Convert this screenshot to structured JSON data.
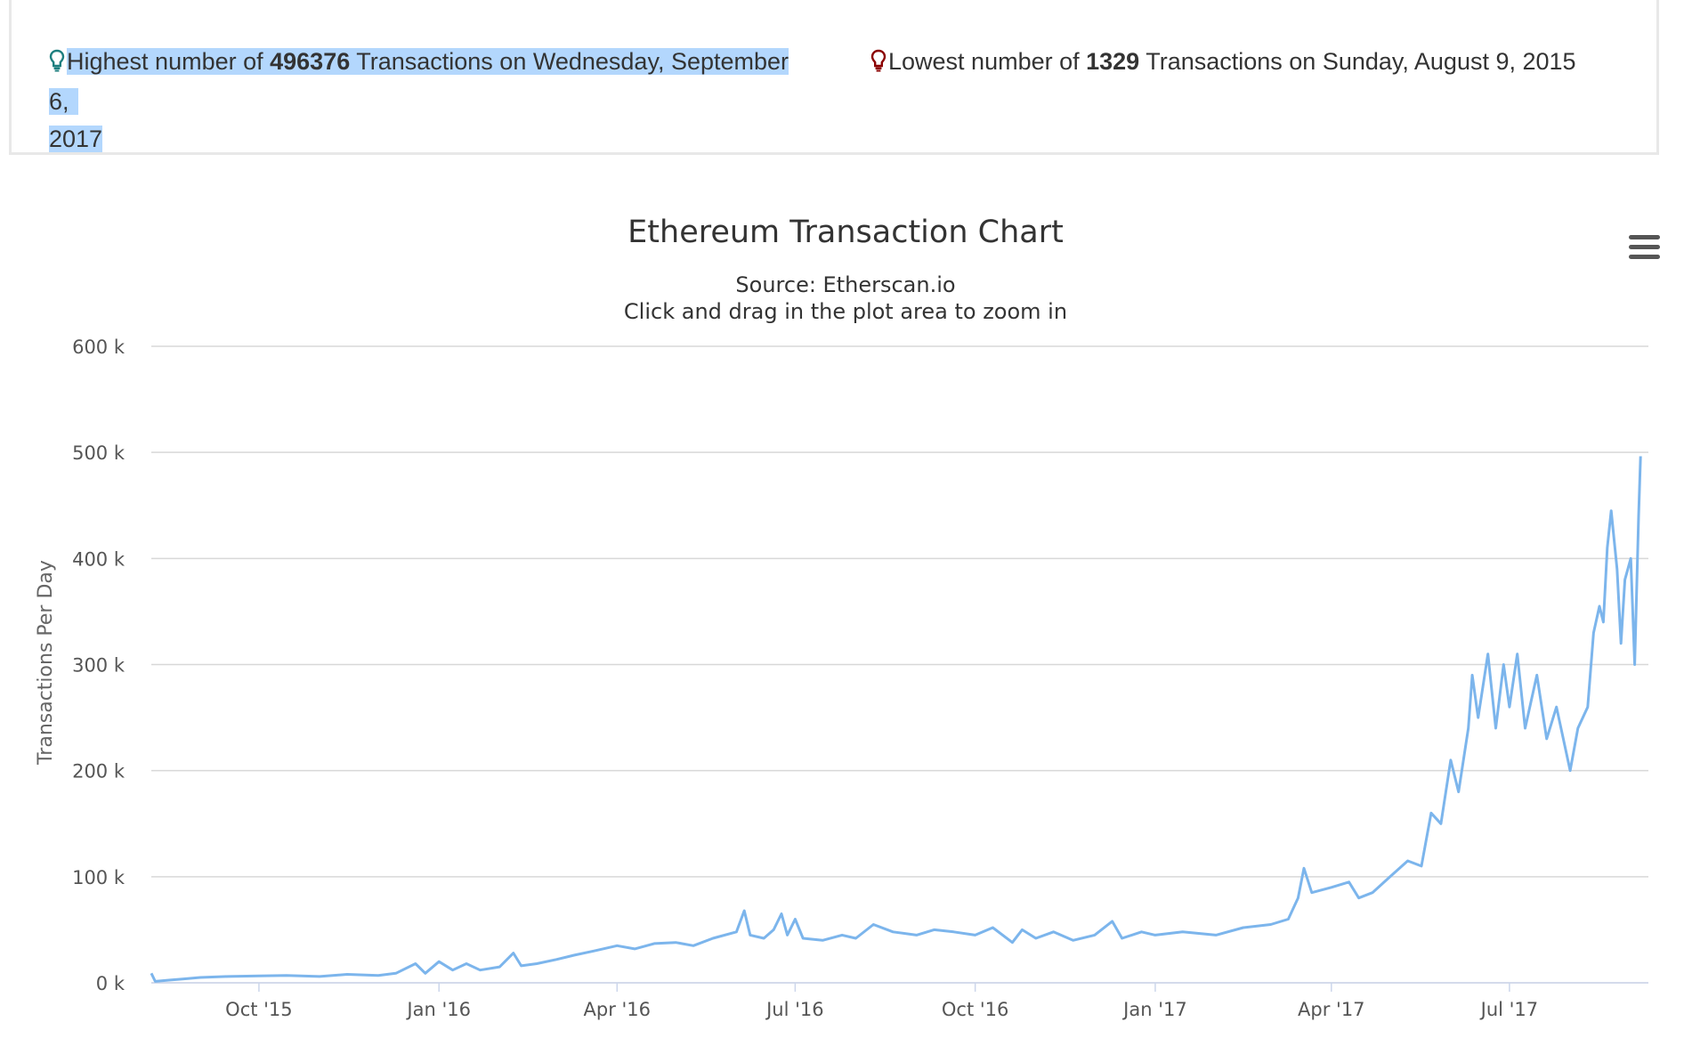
{
  "stats": {
    "highest": {
      "prefix": "Highest number of ",
      "value": "496376",
      "middle": " Transactions on ",
      "date_part1": "Wednesday, September 6,",
      "date_part2": "2017",
      "icon": "lightbulb-icon",
      "icon_color": "#1e7f7f",
      "selection_color": "#b3d7fd"
    },
    "lowest": {
      "prefix": "Lowest number of ",
      "value": "1329",
      "middle": " Transactions on ",
      "date": "Sunday, August 9, 2015",
      "icon": "lightbulb-icon",
      "icon_color": "#8b0000"
    }
  },
  "menu_icon": "hamburger-menu-icon",
  "chart_data": {
    "type": "line",
    "title": "Ethereum Transaction Chart",
    "subtitle_line1": "Source: Etherscan.io",
    "subtitle_line2": "Click and drag in the plot area to zoom in",
    "ylabel": "Transactions Per Day",
    "xlabel": "",
    "ylim": [
      0,
      600000
    ],
    "xlim": [
      "2015-08-07",
      "2017-09-10"
    ],
    "grid": true,
    "line_color": "#7cb5ec",
    "y_ticks": [
      {
        "value": 0,
        "label": "0 k"
      },
      {
        "value": 100000,
        "label": "100 k"
      },
      {
        "value": 200000,
        "label": "200 k"
      },
      {
        "value": 300000,
        "label": "300 k"
      },
      {
        "value": 400000,
        "label": "400 k"
      },
      {
        "value": 500000,
        "label": "500 k"
      },
      {
        "value": 600000,
        "label": "600 k"
      }
    ],
    "x_ticks": [
      {
        "date": "2015-10-01",
        "label": "Oct '15"
      },
      {
        "date": "2016-01-01",
        "label": "Jan '16"
      },
      {
        "date": "2016-04-01",
        "label": "Apr '16"
      },
      {
        "date": "2016-07-01",
        "label": "Jul '16"
      },
      {
        "date": "2016-10-01",
        "label": "Oct '16"
      },
      {
        "date": "2017-01-01",
        "label": "Jan '17"
      },
      {
        "date": "2017-04-01",
        "label": "Apr '17"
      },
      {
        "date": "2017-07-01",
        "label": "Jul '17"
      }
    ],
    "series": [
      {
        "values": [
          [
            "2015-08-07",
            9000
          ],
          [
            "2015-08-09",
            1329
          ],
          [
            "2015-08-16",
            2500
          ],
          [
            "2015-08-23",
            3500
          ],
          [
            "2015-09-01",
            5000
          ],
          [
            "2015-09-15",
            6000
          ],
          [
            "2015-10-01",
            6500
          ],
          [
            "2015-10-15",
            7000
          ],
          [
            "2015-11-01",
            6000
          ],
          [
            "2015-11-15",
            8000
          ],
          [
            "2015-12-01",
            7000
          ],
          [
            "2015-12-10",
            9000
          ],
          [
            "2015-12-20",
            18000
          ],
          [
            "2015-12-25",
            9000
          ],
          [
            "2016-01-01",
            20000
          ],
          [
            "2016-01-08",
            12000
          ],
          [
            "2016-01-15",
            18000
          ],
          [
            "2016-01-22",
            12000
          ],
          [
            "2016-02-01",
            15000
          ],
          [
            "2016-02-08",
            28000
          ],
          [
            "2016-02-12",
            16000
          ],
          [
            "2016-02-20",
            18000
          ],
          [
            "2016-03-01",
            22000
          ],
          [
            "2016-03-10",
            26000
          ],
          [
            "2016-03-20",
            30000
          ],
          [
            "2016-04-01",
            35000
          ],
          [
            "2016-04-10",
            32000
          ],
          [
            "2016-04-20",
            37000
          ],
          [
            "2016-05-01",
            38000
          ],
          [
            "2016-05-10",
            35000
          ],
          [
            "2016-05-20",
            42000
          ],
          [
            "2016-06-01",
            48000
          ],
          [
            "2016-06-05",
            68000
          ],
          [
            "2016-06-08",
            45000
          ],
          [
            "2016-06-15",
            42000
          ],
          [
            "2016-06-20",
            50000
          ],
          [
            "2016-06-24",
            65000
          ],
          [
            "2016-06-27",
            45000
          ],
          [
            "2016-07-01",
            60000
          ],
          [
            "2016-07-05",
            42000
          ],
          [
            "2016-07-15",
            40000
          ],
          [
            "2016-07-25",
            45000
          ],
          [
            "2016-08-01",
            42000
          ],
          [
            "2016-08-10",
            55000
          ],
          [
            "2016-08-20",
            48000
          ],
          [
            "2016-09-01",
            45000
          ],
          [
            "2016-09-10",
            50000
          ],
          [
            "2016-09-20",
            48000
          ],
          [
            "2016-10-01",
            45000
          ],
          [
            "2016-10-10",
            52000
          ],
          [
            "2016-10-20",
            38000
          ],
          [
            "2016-10-25",
            50000
          ],
          [
            "2016-11-01",
            42000
          ],
          [
            "2016-11-10",
            48000
          ],
          [
            "2016-11-20",
            40000
          ],
          [
            "2016-12-01",
            45000
          ],
          [
            "2016-12-10",
            58000
          ],
          [
            "2016-12-15",
            42000
          ],
          [
            "2016-12-25",
            48000
          ],
          [
            "2017-01-01",
            45000
          ],
          [
            "2017-01-15",
            48000
          ],
          [
            "2017-02-01",
            45000
          ],
          [
            "2017-02-15",
            52000
          ],
          [
            "2017-03-01",
            55000
          ],
          [
            "2017-03-10",
            60000
          ],
          [
            "2017-03-15",
            80000
          ],
          [
            "2017-03-18",
            108000
          ],
          [
            "2017-03-22",
            85000
          ],
          [
            "2017-04-01",
            90000
          ],
          [
            "2017-04-10",
            95000
          ],
          [
            "2017-04-15",
            80000
          ],
          [
            "2017-04-22",
            85000
          ],
          [
            "2017-05-01",
            100000
          ],
          [
            "2017-05-10",
            115000
          ],
          [
            "2017-05-17",
            110000
          ],
          [
            "2017-05-22",
            160000
          ],
          [
            "2017-05-27",
            150000
          ],
          [
            "2017-06-01",
            210000
          ],
          [
            "2017-06-05",
            180000
          ],
          [
            "2017-06-10",
            240000
          ],
          [
            "2017-06-12",
            290000
          ],
          [
            "2017-06-15",
            250000
          ],
          [
            "2017-06-20",
            310000
          ],
          [
            "2017-06-24",
            240000
          ],
          [
            "2017-06-28",
            300000
          ],
          [
            "2017-07-01",
            260000
          ],
          [
            "2017-07-05",
            310000
          ],
          [
            "2017-07-09",
            240000
          ],
          [
            "2017-07-15",
            290000
          ],
          [
            "2017-07-20",
            230000
          ],
          [
            "2017-07-25",
            260000
          ],
          [
            "2017-08-01",
            200000
          ],
          [
            "2017-08-05",
            240000
          ],
          [
            "2017-08-10",
            260000
          ],
          [
            "2017-08-13",
            330000
          ],
          [
            "2017-08-16",
            355000
          ],
          [
            "2017-08-18",
            340000
          ],
          [
            "2017-08-20",
            410000
          ],
          [
            "2017-08-22",
            445000
          ],
          [
            "2017-08-25",
            390000
          ],
          [
            "2017-08-27",
            320000
          ],
          [
            "2017-08-29",
            380000
          ],
          [
            "2017-09-01",
            400000
          ],
          [
            "2017-09-03",
            300000
          ],
          [
            "2017-09-05",
            440000
          ],
          [
            "2017-09-06",
            496376
          ]
        ]
      }
    ]
  }
}
